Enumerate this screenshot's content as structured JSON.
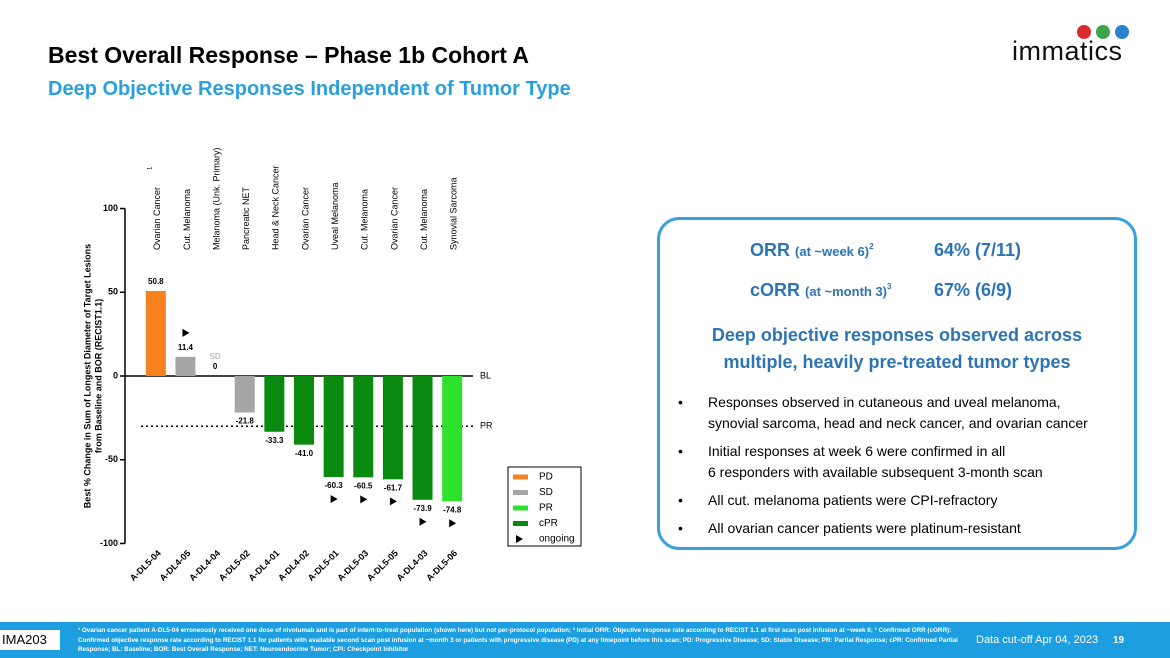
{
  "header": {
    "title": "Best Overall Response – Phase 1b Cohort A",
    "subtitle": "Deep Objective Responses Independent of Tumor Type",
    "logo": "immatics"
  },
  "chart_data": {
    "type": "bar",
    "categories": [
      "A-DL5-04",
      "A-DL4-05",
      "A-DL4-04",
      "A-DL5-02",
      "A-DL4-01",
      "A-DL4-02",
      "A-DL5-01",
      "A-DL5-03",
      "A-DL5-05",
      "A-DL4-03",
      "A-DL5-06"
    ],
    "tumor_types": [
      "Ovarian Cancer",
      "Cut. Melanoma",
      "Melanoma (Unk. Primary)",
      "Pancreatic NET",
      "Head & Neck Cancer",
      "Ovarian Cancer",
      "Uveal Melanoma",
      "Cut. Melanoma",
      "Ovarian Cancer",
      "Cut. Melanoma",
      "Synovial Sarcoma"
    ],
    "tumor_type_footnote": "1",
    "values": [
      50.8,
      11.4,
      0,
      -21.8,
      -33.3,
      -41.0,
      -60.3,
      -60.5,
      -61.7,
      -73.9,
      -74.8
    ],
    "value_labels": [
      "50.8",
      "11.4",
      "0",
      "-21.8",
      "-33.3",
      "-41.0",
      "-60.3",
      "-60.5",
      "-61.7",
      "-73.9",
      "-74.8"
    ],
    "responses": [
      "PD",
      "SD",
      "SD",
      "SD",
      "cPR",
      "cPR",
      "cPR",
      "cPR",
      "cPR",
      "cPR",
      "PR"
    ],
    "ongoing": [
      false,
      true,
      false,
      false,
      false,
      false,
      true,
      true,
      true,
      true,
      true
    ],
    "legend": [
      {
        "name": "PD",
        "color": "#f5821f"
      },
      {
        "name": "SD",
        "color": "#a6a6a6"
      },
      {
        "name": "PR",
        "color": "#2de12d"
      },
      {
        "name": "cPR",
        "color": "#0b8a12"
      },
      {
        "name": "ongoing",
        "color": "#000000"
      }
    ],
    "y_label": [
      "Best % Change in Sum of Longest Diameter of Target Lesions",
      "from Baseline and BOR (RECIST1.1)"
    ],
    "ylim": [
      -100,
      100
    ],
    "yticks": [
      -100,
      -50,
      0,
      50,
      100
    ],
    "reference_lines": [
      {
        "value": 0,
        "label": "BL"
      },
      {
        "value": -30,
        "label": "PR"
      }
    ]
  },
  "panel": {
    "metrics": [
      {
        "label": "ORR",
        "qualifier": "(at ~week 6)",
        "note": "2",
        "value": "64% (7/11)"
      },
      {
        "label": "cORR",
        "qualifier": "(at ~month 3)",
        "note": "3",
        "value": "67% (6/9)"
      }
    ],
    "headline": [
      "Deep objective responses observed across",
      "multiple, heavily pre-treated tumor types"
    ],
    "bullets": [
      [
        "Responses observed in cutaneous and uveal melanoma,",
        "synovial sarcoma, head and neck cancer, and ovarian cancer"
      ],
      [
        "Initial responses at week 6 were confirmed in all",
        "6 responders with available subsequent 3-month scan"
      ],
      [
        "All cut. melanoma patients were CPI-refractory"
      ],
      [
        "All ovarian cancer patients were platinum-resistant"
      ]
    ]
  },
  "footer": {
    "tag": "IMA203",
    "footnote": "¹ Ovarian cancer patient A-DL5-04 erroneously received one dose of nivolumab and is part of intent-to-treat population (shown here) but not per-protocol population; ² Initial ORR: Objective response rate according to RECIST 1.1 at first scan post infusion at ~week 6; ³ Confirmed ORR (cORR): Confirmed objective response rate according to RECIST 1.1 for patients with available second scan post infusion at ~month 3 or patients with progressive disease (PD) at any timepoint before this scan; PD: Progressive Disease; SD: Stable Disease; PR: Partial Response; cPR: Confirmed Partial Response; BL: Baseline; BOR: Best Overall Response; NET: Neuroendocrine Tumor; CPI: Checkpoint Inhibitor",
    "cutoff": "Data cut-off Apr 04, 2023",
    "page": "19"
  }
}
